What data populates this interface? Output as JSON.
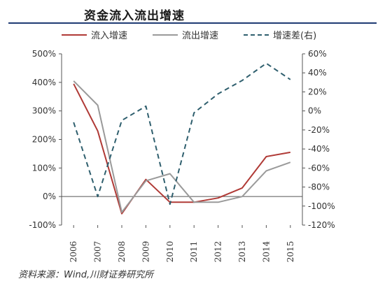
{
  "title": "资金流入流出增速",
  "source": "资料来源：Wind,川财证券研究所",
  "chart_data": {
    "type": "line",
    "categories": [
      "2006",
      "2007",
      "2008",
      "2009",
      "2010",
      "2011",
      "2012",
      "2013",
      "2014",
      "2015"
    ],
    "series": [
      {
        "name": "流入增速",
        "axis": "left",
        "color": "#b03a36",
        "dash": false,
        "values": [
          395,
          230,
          -60,
          60,
          -20,
          -20,
          -5,
          30,
          140,
          155
        ]
      },
      {
        "name": "流出增速",
        "axis": "left",
        "color": "#9a9a9a",
        "dash": false,
        "values": [
          405,
          320,
          -55,
          55,
          80,
          -20,
          -20,
          0,
          90,
          120
        ]
      },
      {
        "name": "增速差(右)",
        "axis": "right",
        "color": "#2f5f6e",
        "dash": true,
        "values": [
          -12,
          -90,
          -10,
          5,
          -98,
          -2,
          18,
          32,
          50,
          33
        ]
      }
    ],
    "ylim_left": [
      -100,
      500
    ],
    "yticks_left": [
      "500%",
      "400%",
      "300%",
      "200%",
      "100%",
      "0%",
      "-100%"
    ],
    "ylim_right": [
      -120,
      60
    ],
    "yticks_right": [
      "60%",
      "40%",
      "20%",
      "0%",
      "-20%",
      "-40%",
      "-60%",
      "-80%",
      "-100%",
      "-120%"
    ]
  }
}
